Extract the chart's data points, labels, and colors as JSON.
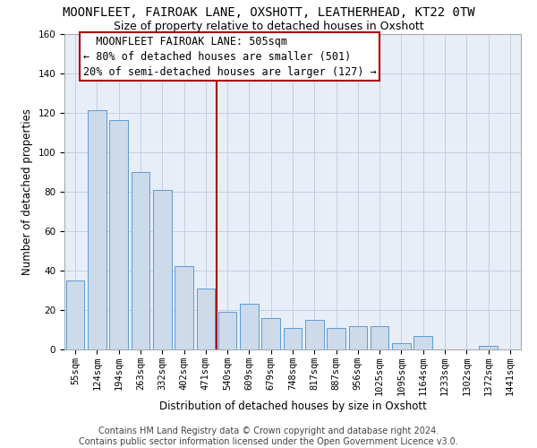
{
  "title": "MOONFLEET, FAIROAK LANE, OXSHOTT, LEATHERHEAD, KT22 0TW",
  "subtitle": "Size of property relative to detached houses in Oxshott",
  "xlabel": "Distribution of detached houses by size in Oxshott",
  "ylabel": "Number of detached properties",
  "footer_line1": "Contains HM Land Registry data © Crown copyright and database right 2024.",
  "footer_line2": "Contains public sector information licensed under the Open Government Licence v3.0.",
  "categories": [
    "55sqm",
    "124sqm",
    "194sqm",
    "263sqm",
    "332sqm",
    "402sqm",
    "471sqm",
    "540sqm",
    "609sqm",
    "679sqm",
    "748sqm",
    "817sqm",
    "887sqm",
    "956sqm",
    "1025sqm",
    "1095sqm",
    "1164sqm",
    "1233sqm",
    "1302sqm",
    "1372sqm",
    "1441sqm"
  ],
  "values": [
    35,
    121,
    116,
    90,
    81,
    42,
    31,
    19,
    23,
    16,
    11,
    15,
    11,
    12,
    12,
    3,
    7,
    0,
    0,
    2,
    0
  ],
  "bar_color": "#ccdaea",
  "bar_edge_color": "#5b9bd5",
  "ylim": [
    0,
    160
  ],
  "yticks": [
    0,
    20,
    40,
    60,
    80,
    100,
    120,
    140,
    160
  ],
  "property_line_x": 6.5,
  "property_line_color": "#aa0000",
  "annotation_text_line1": "  MOONFLEET FAIROAK LANE: 505sqm  ",
  "annotation_text_line2": "← 80% of detached houses are smaller (501)",
  "annotation_text_line3": "20% of semi-detached houses are larger (127) →",
  "bg_color": "#e8eef8",
  "grid_color": "#c5cfe0",
  "title_fontsize": 10,
  "subtitle_fontsize": 9,
  "axis_label_fontsize": 8.5,
  "tick_fontsize": 7.5,
  "footer_fontsize": 7,
  "annotation_fontsize": 8.5
}
